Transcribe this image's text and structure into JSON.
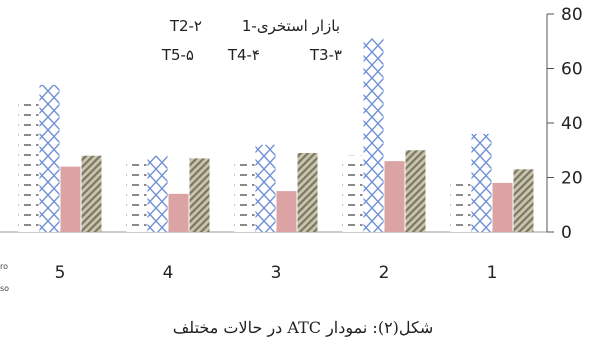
{
  "chart_data": {
    "type": "bar",
    "categories": [
      "1",
      "2",
      "3",
      "4",
      "5"
    ],
    "series": [
      {
        "name": "1-بازار استخری",
        "values": [
          19,
          28,
          27,
          25,
          47
        ],
        "color": "#666666",
        "pattern": "dash"
      },
      {
        "name": "T2-۲",
        "values": [
          36,
          71,
          32,
          28,
          54
        ],
        "color": "#6f8fd6",
        "pattern": "zigzag"
      },
      {
        "name": "T3-۳",
        "values": [
          18,
          26,
          15,
          14,
          24
        ],
        "color": "#dba3a3",
        "pattern": "solid"
      },
      {
        "name": "T4-۴",
        "values": [
          23,
          30,
          29,
          27,
          28
        ],
        "color": "#9e9a83",
        "pattern": "diag"
      },
      {
        "name": "T5-۵",
        "values": [
          0,
          0,
          0,
          0,
          0
        ],
        "color": "#a9a6a6",
        "pattern": "solid"
      }
    ],
    "yticks": [
      0,
      20,
      40,
      60,
      80
    ],
    "ylim": [
      0,
      80
    ],
    "axis_side": "right",
    "legend": {
      "placement": "top",
      "rows": [
        [
          "1-بازار استخری",
          "T2-۲"
        ],
        [
          "T5-۵",
          "T4-۴",
          "T3-۳"
        ]
      ]
    }
  },
  "caption": "شکل(۲): نمودار ATC در حالات مختلف",
  "edge_text": [
    "ro",
    "so"
  ]
}
